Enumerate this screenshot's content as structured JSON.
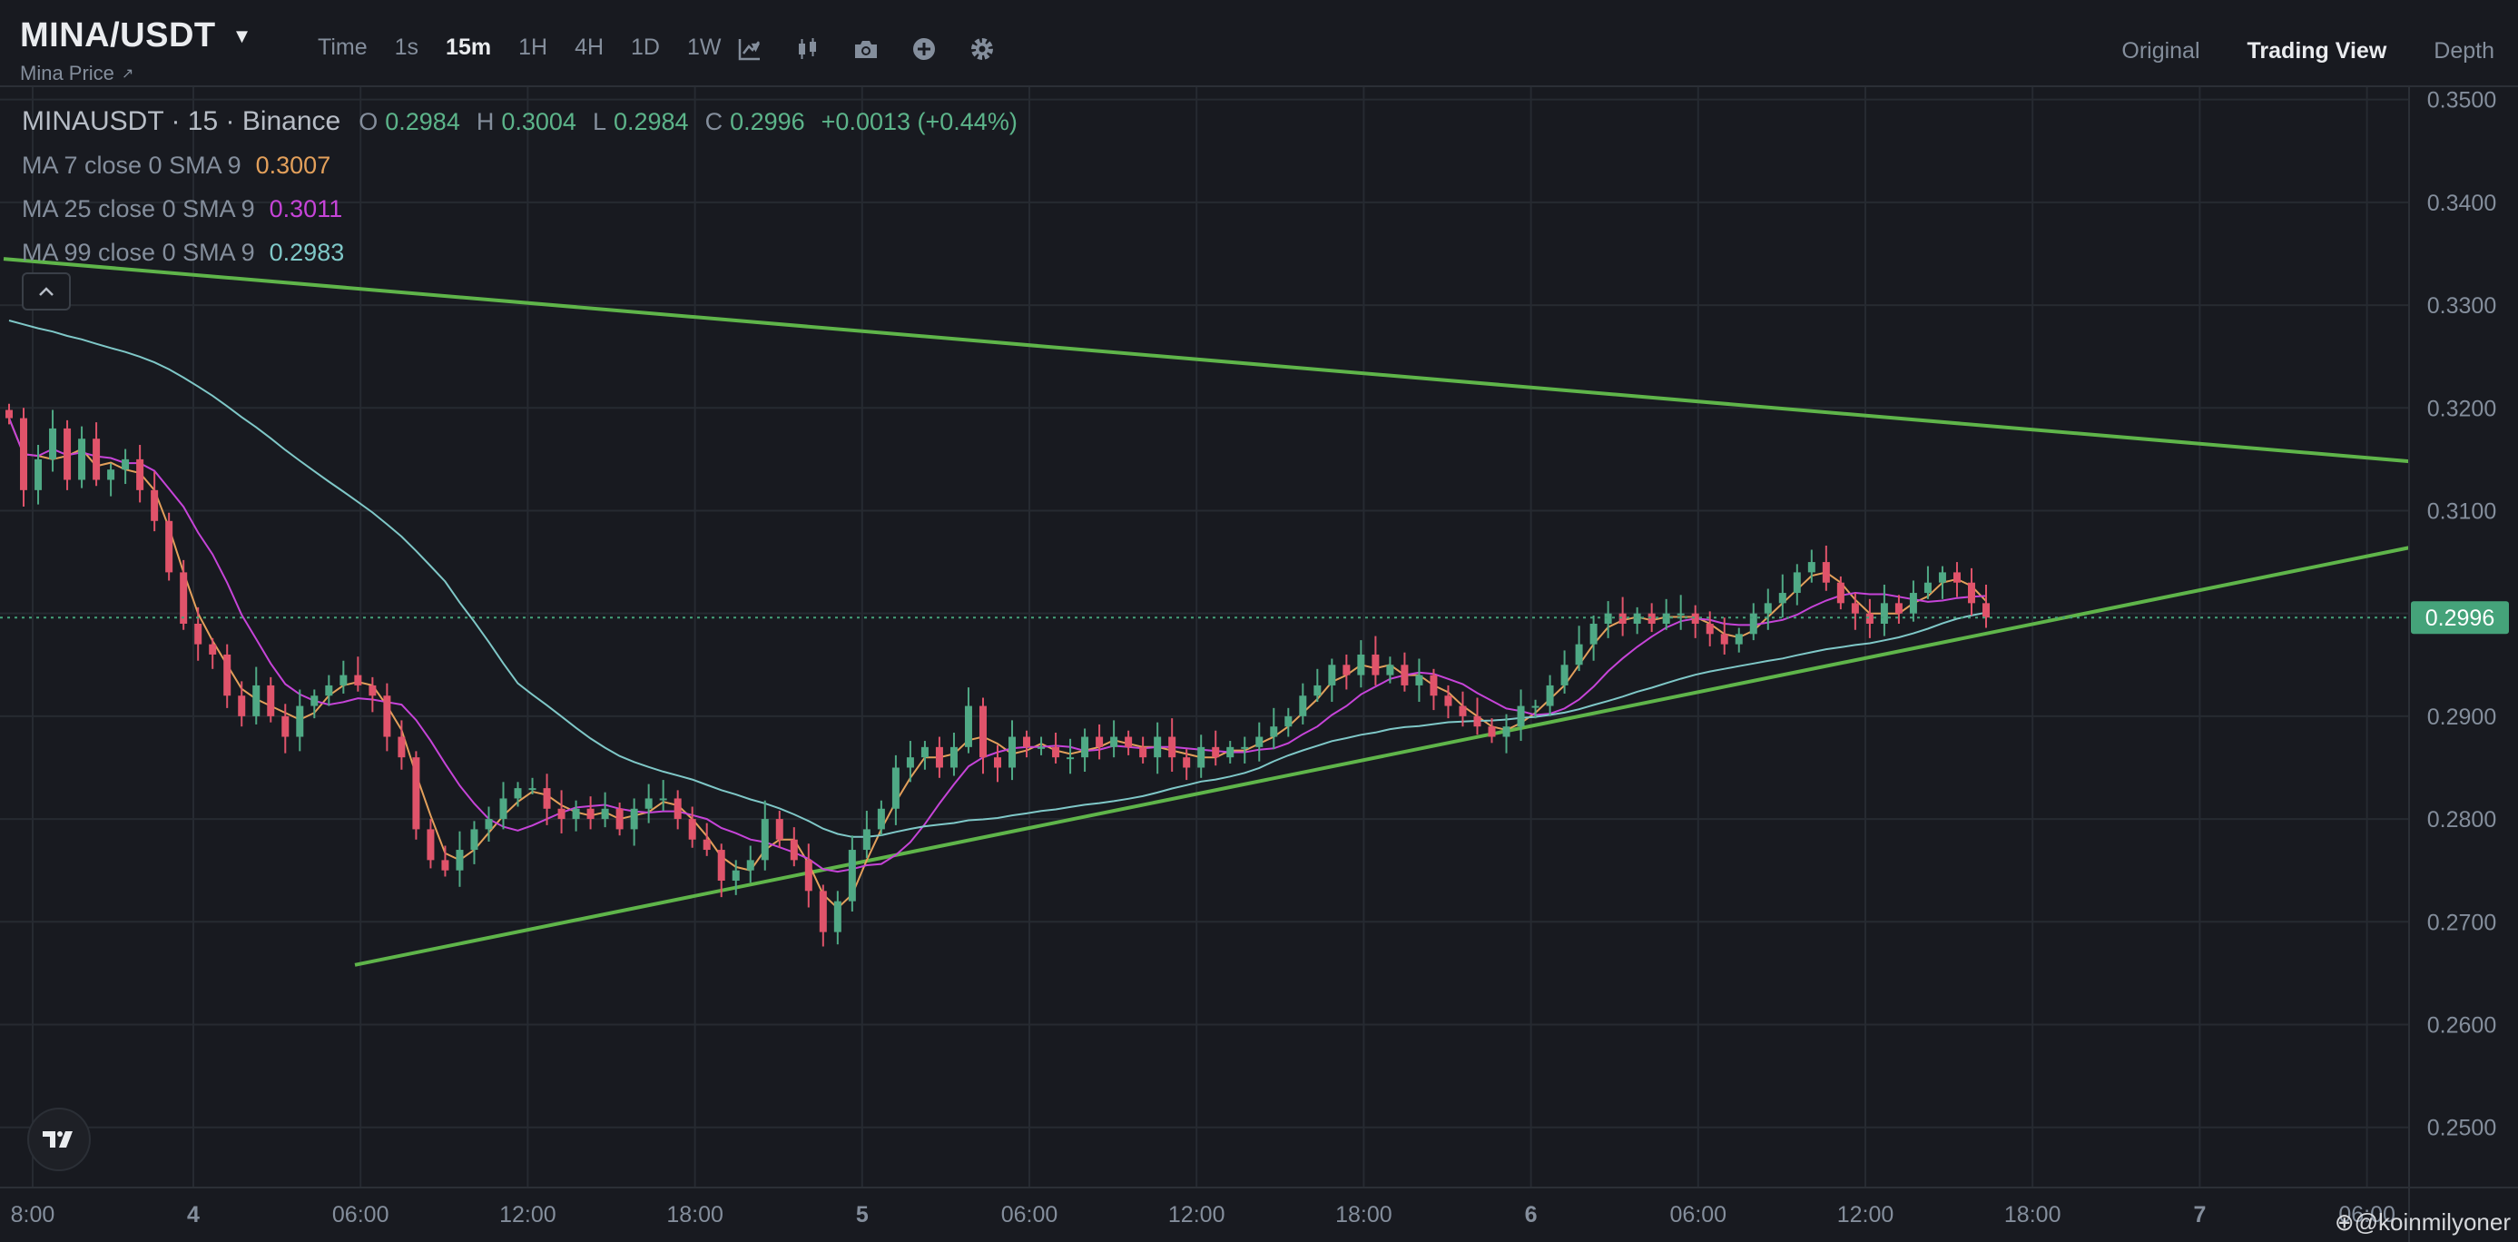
{
  "header": {
    "pair": "MINA/USDT",
    "subtitle": "Mina Price",
    "intervals": [
      "Time",
      "1s",
      "15m",
      "1H",
      "4H",
      "1D",
      "1W"
    ],
    "active_interval": "15m",
    "views": [
      "Original",
      "Trading View",
      "Depth"
    ],
    "active_view": "Trading View"
  },
  "legend": {
    "symbol": "MINAUSDT · 15 · Binance",
    "open_label": "O",
    "open": "0.2984",
    "high_label": "H",
    "high": "0.3004",
    "low_label": "L",
    "low": "0.2984",
    "close_label": "C",
    "close": "0.2996",
    "change": "+0.0013 (+0.44%)",
    "ma7_label": "MA 7 close 0 SMA 9",
    "ma7_value": "0.3007",
    "ma25_label": "MA 25 close 0 SMA 9",
    "ma25_value": "0.3011",
    "ma99_label": "MA 99 close 0 SMA 9",
    "ma99_value": "0.2983"
  },
  "watermark": "@koinmilyoner",
  "colors": {
    "up": "#4fa985",
    "down": "#e0536a",
    "ma7": "#e3a05b",
    "ma25": "#c644d8",
    "ma99": "#7fc8c8",
    "trendline": "#5fb54a",
    "price_tag": "#45a37a",
    "background": "#181a20"
  },
  "chart_data": {
    "type": "candlestick",
    "title": "MINAUSDT · 15 · Binance",
    "y_ticks": [
      "0.3500",
      "0.3400",
      "0.3300",
      "0.3200",
      "0.3100",
      "0.3000",
      "0.2900",
      "0.2800",
      "0.2700",
      "0.2600",
      "0.2500"
    ],
    "x_ticks": [
      "8:00",
      "4",
      "06:00",
      "12:00",
      "18:00",
      "5",
      "06:00",
      "12:00",
      "18:00",
      "6",
      "06:00",
      "12:00",
      "18:00",
      "7",
      "06:00"
    ],
    "ylim": [
      0.2475,
      0.3505
    ],
    "x_start": "3 20:00",
    "x_end": "7 07:00",
    "last_price": "0.2996",
    "close_series": [
      0.319,
      0.312,
      0.315,
      0.318,
      0.313,
      0.317,
      0.313,
      0.314,
      0.315,
      0.312,
      0.309,
      0.304,
      0.299,
      0.297,
      0.296,
      0.292,
      0.29,
      0.293,
      0.29,
      0.288,
      0.291,
      0.292,
      0.293,
      0.294,
      0.293,
      0.292,
      0.288,
      0.286,
      0.279,
      0.276,
      0.275,
      0.277,
      0.279,
      0.28,
      0.282,
      0.283,
      0.283,
      0.281,
      0.28,
      0.281,
      0.28,
      0.281,
      0.279,
      0.281,
      0.282,
      0.282,
      0.28,
      0.278,
      0.277,
      0.274,
      0.275,
      0.276,
      0.28,
      0.278,
      0.276,
      0.273,
      0.269,
      0.272,
      0.277,
      0.279,
      0.281,
      0.285,
      0.286,
      0.287,
      0.285,
      0.287,
      0.291,
      0.286,
      0.285,
      0.288,
      0.287,
      0.287,
      0.286,
      0.286,
      0.288,
      0.287,
      0.288,
      0.287,
      0.286,
      0.288,
      0.286,
      0.285,
      0.287,
      0.286,
      0.287,
      0.287,
      0.288,
      0.289,
      0.29,
      0.292,
      0.293,
      0.295,
      0.294,
      0.296,
      0.294,
      0.295,
      0.293,
      0.294,
      0.292,
      0.291,
      0.29,
      0.289,
      0.288,
      0.289,
      0.291,
      0.291,
      0.293,
      0.295,
      0.297,
      0.299,
      0.3,
      0.299,
      0.3,
      0.299,
      0.3,
      0.3,
      0.299,
      0.298,
      0.297,
      0.298,
      0.3,
      0.301,
      0.302,
      0.304,
      0.305,
      0.303,
      0.301,
      0.3,
      0.299,
      0.301,
      0.3,
      0.302,
      0.303,
      0.304,
      0.303,
      0.301,
      0.2996
    ],
    "trendlines": [
      {
        "from_x": "3 20:00",
        "from_y": 0.3345,
        "to_x": "7 07:00",
        "to_y": 0.3148
      },
      {
        "from_x": "4 06:00",
        "from_y": 0.2658,
        "to_x": "7 07:00",
        "to_y": 0.3064
      }
    ],
    "grid": true
  }
}
